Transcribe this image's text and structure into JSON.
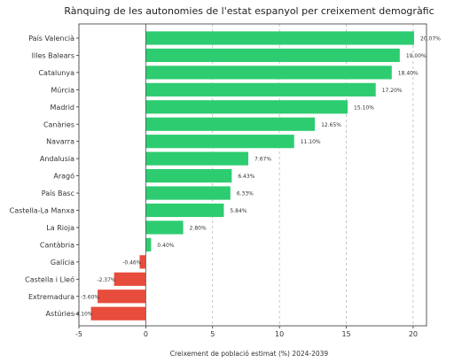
{
  "chart_data": {
    "type": "bar",
    "orientation": "horizontal",
    "title": "Rànquing de les autonomies de l'estat espanyol per creixement demogràfic",
    "xlabel": "Creixement de població estimat (%) 2024-2039",
    "ylabel": "",
    "xlim": [
      -5,
      21
    ],
    "xticks": [
      -5,
      0,
      5,
      10,
      15,
      20
    ],
    "grid": "vertical-dashed",
    "colors": {
      "positive": "#2ecc71",
      "negative": "#e74c3c",
      "zero_line": "#555555"
    },
    "categories": [
      "País Valencià",
      "Illes Balears",
      "Catalunya",
      "Múrcia",
      "Madrid",
      "Canàries",
      "Navarra",
      "Andalusia",
      "Aragó",
      "País Basc",
      "Castella-La Manxa",
      "La Rioja",
      "Cantàbria",
      "Galícia",
      "Castella i Lleó",
      "Extremadura",
      "Astúries"
    ],
    "values": [
      20.07,
      19.0,
      18.4,
      17.2,
      15.1,
      12.65,
      11.1,
      7.67,
      6.43,
      6.33,
      5.84,
      2.8,
      0.4,
      -0.46,
      -2.37,
      -3.6,
      -4.1
    ],
    "value_labels": [
      "20.07%",
      "19.00%",
      "18.40%",
      "17.20%",
      "15.10%",
      "12.65%",
      "11.10%",
      "7.67%",
      "6.43%",
      "6.33%",
      "5.84%",
      "2.80%",
      "0.40%",
      "-0.46%",
      "-2.37%",
      "-3.60%",
      "-4.10%"
    ]
  }
}
